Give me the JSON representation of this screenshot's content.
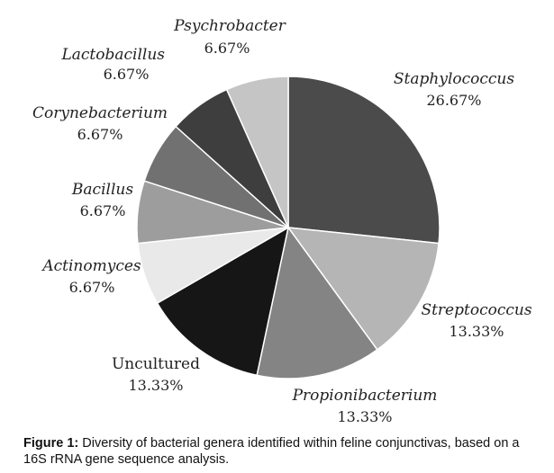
{
  "chart_data": {
    "type": "pie",
    "title": "",
    "categories": [
      "Staphylococcus",
      "Streptococcus",
      "Propionibacterium",
      "Uncultured",
      "Actinomyces",
      "Bacillus",
      "Corynebacterium",
      "Lactobacillus",
      "Psychrobacter"
    ],
    "values": [
      26.67,
      13.33,
      13.33,
      13.33,
      6.67,
      6.67,
      6.67,
      6.67,
      6.67
    ],
    "value_labels": [
      "26.67%",
      "13.33%",
      "13.33%",
      "13.33%",
      "6.67%",
      "6.67%",
      "6.67%",
      "6.67%",
      "6.67%"
    ],
    "colors": [
      "#4b4b4b",
      "#b5b5b5",
      "#848484",
      "#161616",
      "#e9e9e9",
      "#9d9d9d",
      "#717171",
      "#3e3e3e",
      "#c5c5c5"
    ],
    "italic_names": [
      true,
      true,
      true,
      false,
      true,
      true,
      true,
      true,
      true
    ],
    "start": "12 o'clock",
    "direction": "clockwise"
  },
  "caption": {
    "label": "Figure 1:",
    "text": "Diversity of bacterial genera identified within feline conjunctivas, based on a 16S rRNA gene sequence analysis."
  }
}
